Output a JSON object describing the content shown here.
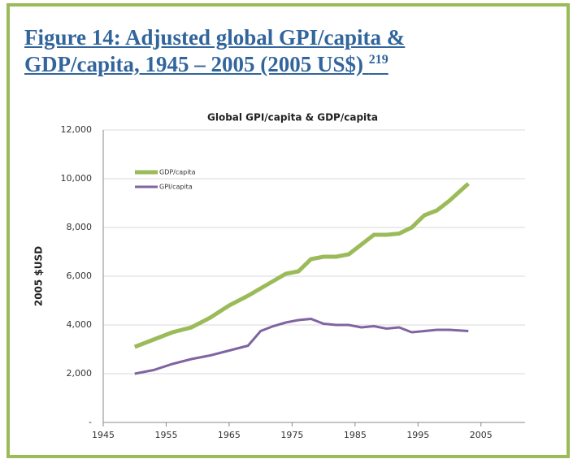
{
  "heading": {
    "text": "Figure 14: Adjusted global GPI/capita & GDP/capita, 1945 – 2005 (2005 US$)",
    "superscript": "219"
  },
  "chart_data": {
    "type": "line",
    "title": "Global GPI/capita & GDP/capita",
    "y_label": "2005 $USD",
    "x": [
      1950,
      1953,
      1956,
      1959,
      1962,
      1965,
      1968,
      1970,
      1972,
      1974,
      1976,
      1978,
      1980,
      1982,
      1984,
      1986,
      1988,
      1990,
      1992,
      1994,
      1996,
      1998,
      2000,
      2003
    ],
    "series": [
      {
        "name": "GDP/capita",
        "color": "#9bbb59",
        "values": [
          3100,
          3400,
          3700,
          3900,
          4300,
          4800,
          5200,
          5500,
          5800,
          6100,
          6200,
          6700,
          6800,
          6800,
          6900,
          7300,
          7700,
          7700,
          7750,
          8000,
          8500,
          8700,
          9100,
          9800
        ]
      },
      {
        "name": "GPI/capita",
        "color": "#8064a2",
        "values": [
          2000,
          2150,
          2400,
          2600,
          2750,
          2950,
          3150,
          3750,
          3950,
          4100,
          4200,
          4250,
          4050,
          4000,
          4000,
          3900,
          3950,
          3850,
          3900,
          3700,
          3750,
          3800,
          3800,
          3750
        ]
      }
    ],
    "xlim": [
      1945,
      2012
    ],
    "xticks": [
      1945,
      1955,
      1965,
      1975,
      1985,
      1995,
      2005
    ],
    "ylim": [
      0,
      12000
    ],
    "yticks": [
      {
        "value": 0,
        "label": "-"
      },
      {
        "value": 2000,
        "label": "2,000"
      },
      {
        "value": 4000,
        "label": "4,000"
      },
      {
        "value": 6000,
        "label": "6,000"
      },
      {
        "value": 8000,
        "label": "8,000"
      },
      {
        "value": 10000,
        "label": "10,000"
      },
      {
        "value": 12000,
        "label": "12,000"
      }
    ],
    "grid": true,
    "legend": "top-left"
  }
}
